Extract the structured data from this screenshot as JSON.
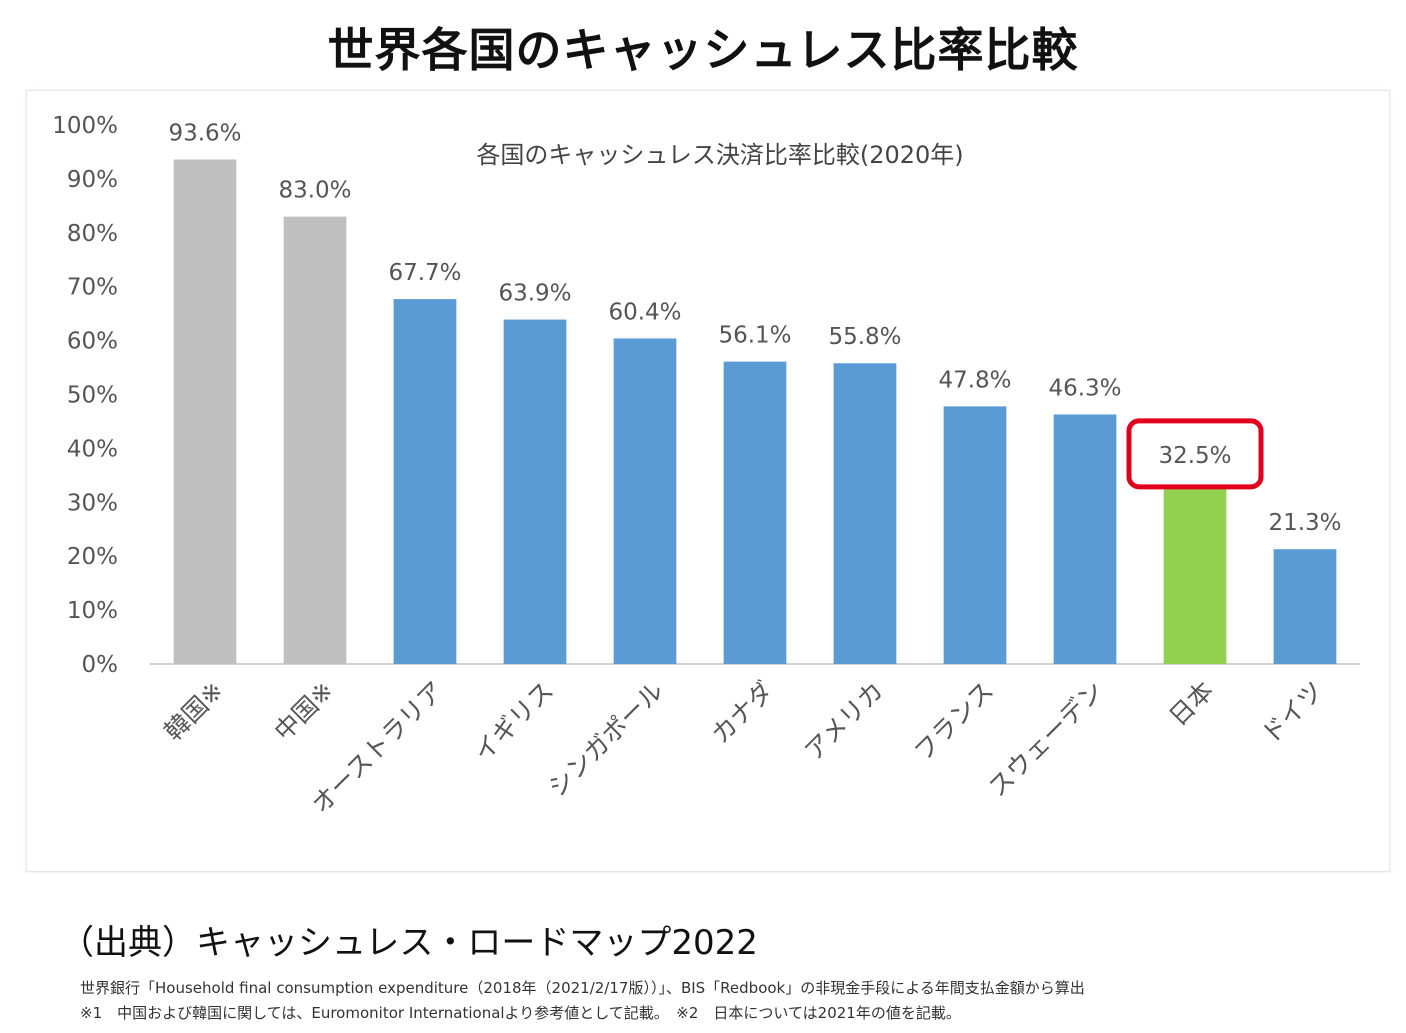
{
  "page": {
    "title": "世界各国のキャッシュレス比率比較",
    "source_title": "（出典）キャッシュレス・ロードマップ2022",
    "note_line1": "世界銀行「Household final consumption expenditure（2018年（2021/2/17版））」、BIS「Redbook」の非現金手段による年間支払金額から算出",
    "note_line2": "※1　中国および韓国に関しては、Euromonitor Internationalより参考値として記載。　※2　日本については2021年の値を記載。"
  },
  "chart_data": {
    "type": "bar",
    "title": "各国のキャッシュレス決済比率比較(2020年)",
    "xlabel": "",
    "ylabel": "",
    "ylim": [
      0,
      100
    ],
    "yticks": [
      0,
      10,
      20,
      30,
      40,
      50,
      60,
      70,
      80,
      90,
      100
    ],
    "ytick_labels": [
      "0%",
      "10%",
      "20%",
      "30%",
      "40%",
      "50%",
      "60%",
      "70%",
      "80%",
      "90%",
      "100%"
    ],
    "grid": false,
    "categories": [
      "韓国※",
      "中国※",
      "オーストラリア",
      "イギリス",
      "シンガポール",
      "カナダ",
      "アメリカ",
      "フランス",
      "スウェーデン",
      "日本",
      "ドイツ"
    ],
    "values": [
      93.6,
      83.0,
      67.7,
      63.9,
      60.4,
      56.1,
      55.8,
      47.8,
      46.3,
      32.5,
      21.3
    ],
    "value_labels": [
      "93.6%",
      "83.0%",
      "67.7%",
      "63.9%",
      "60.4%",
      "56.1%",
      "55.8%",
      "47.8%",
      "46.3%",
      "32.5%",
      "21.3%"
    ],
    "bar_colors": [
      "#bfbfbf",
      "#bfbfbf",
      "#5b9bd5",
      "#5b9bd5",
      "#5b9bd5",
      "#5b9bd5",
      "#5b9bd5",
      "#5b9bd5",
      "#5b9bd5",
      "#92d050",
      "#5b9bd5"
    ],
    "highlight_index": 9,
    "highlight_color": "#e0001b"
  }
}
